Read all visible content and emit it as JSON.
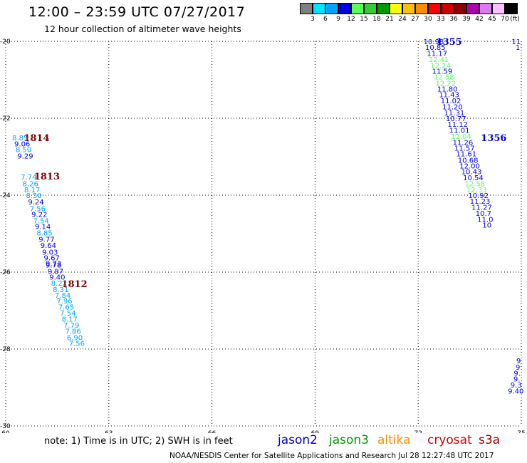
{
  "header": {
    "title": "12:00 – 23:59 UTC 07/27/2017",
    "subtitle": "12 hour collection of altimeter wave heights"
  },
  "color_scale": {
    "labels": [
      "3",
      "6",
      "9",
      "12",
      "15",
      "18",
      "21",
      "24",
      "27",
      "30",
      "33",
      "36",
      "39",
      "42",
      "45",
      "70",
      "(ft)"
    ],
    "colors": [
      "#808080",
      "#00e5ff",
      "#00a5ff",
      "#0000e6",
      "#59ff59",
      "#33cc33",
      "#009900",
      "#ffff00",
      "#ffc000",
      "#ff8c00",
      "#ff0000",
      "#cc0000",
      "#8b0000",
      "#b000b0",
      "#d87cf0",
      "#ffc0ff",
      "#000000"
    ]
  },
  "footer": {
    "note": "note:  1) Time is in UTC;  2) SWH is in feet",
    "missions": [
      {
        "name": "jason2",
        "color": "#0000cc"
      },
      {
        "name": "jason3",
        "color": "#009900"
      },
      {
        "name": "altika",
        "color": "#ff8c00"
      },
      {
        "name": "cryosat",
        "color": "#cc0000"
      },
      {
        "name": "s3a",
        "color": "#990000"
      }
    ],
    "credits": "NOAA/NESDIS Center for Satellite Applications and Research    Jul 28 12:27:48 UTC 2017"
  },
  "chart_data": {
    "type": "scatter",
    "title": "12:00 – 23:59 UTC 07/27/2017",
    "subtitle": "12 hour collection of altimeter wave heights",
    "xlabel": "",
    "ylabel": "",
    "xlim": [
      60,
      75
    ],
    "ylim": [
      -30,
      -20
    ],
    "x_ticks": [
      60,
      63,
      66,
      69,
      72,
      75
    ],
    "y_ticks": [
      -20,
      -22,
      -24,
      -26,
      -28,
      -30
    ],
    "grid": true,
    "track_labels": [
      {
        "text": "1814",
        "x": 60.9,
        "y": -22.5,
        "color": "#800000"
      },
      {
        "text": "1813",
        "x": 61.2,
        "y": -23.5,
        "color": "#800000"
      },
      {
        "text": "1812",
        "x": 62.0,
        "y": -26.3,
        "color": "#800000"
      },
      {
        "text": "1355",
        "x": 72.9,
        "y": -20.0,
        "color": "#0000cc"
      },
      {
        "text": "1356",
        "x": 74.2,
        "y": -22.5,
        "color": "#0000cc"
      }
    ],
    "series": [
      {
        "name": "1814",
        "points": [
          {
            "x": 60.42,
            "y": -22.5,
            "v": "8.85",
            "c": "#00a5ff"
          },
          {
            "x": 60.48,
            "y": -22.66,
            "v": "9.06",
            "c": "#0000e6"
          },
          {
            "x": 60.52,
            "y": -22.81,
            "v": "8.50",
            "c": "#00a5ff"
          },
          {
            "x": 60.57,
            "y": -22.97,
            "v": "9.29",
            "c": "#0000e6"
          }
        ]
      },
      {
        "name": "1813",
        "points": [
          {
            "x": 60.67,
            "y": -23.52,
            "v": "7.74",
            "c": "#00a5ff"
          },
          {
            "x": 60.72,
            "y": -23.69,
            "v": "8.26",
            "c": "#00a5ff"
          },
          {
            "x": 60.77,
            "y": -23.85,
            "v": "8.17",
            "c": "#00a5ff"
          },
          {
            "x": 60.82,
            "y": -24.0,
            "v": "8.50",
            "c": "#00a5ff"
          },
          {
            "x": 60.88,
            "y": -24.17,
            "v": "9.24",
            "c": "#0000e6"
          },
          {
            "x": 60.93,
            "y": -24.34,
            "v": "7.56",
            "c": "#00a5ff"
          },
          {
            "x": 60.98,
            "y": -24.49,
            "v": "9.22",
            "c": "#0000e6"
          },
          {
            "x": 61.03,
            "y": -24.66,
            "v": "7.54",
            "c": "#00a5ff"
          },
          {
            "x": 61.08,
            "y": -24.81,
            "v": "9.14",
            "c": "#0000e6"
          },
          {
            "x": 61.13,
            "y": -24.97,
            "v": "8.85",
            "c": "#00a5ff"
          },
          {
            "x": 61.19,
            "y": -25.14,
            "v": "9.77",
            "c": "#0000e6"
          },
          {
            "x": 61.24,
            "y": -25.3,
            "v": "9.64",
            "c": "#0000e6"
          },
          {
            "x": 61.29,
            "y": -25.47,
            "v": "9.03",
            "c": "#0000e6"
          },
          {
            "x": 61.34,
            "y": -25.62,
            "v": "9.67",
            "c": "#0000e6"
          },
          {
            "x": 61.39,
            "y": -25.77,
            "v": "9.73",
            "c": "#0000e6"
          }
        ]
      },
      {
        "name": "1812",
        "points": [
          {
            "x": 61.39,
            "y": -25.81,
            "v": "9.78",
            "c": "#0000e6"
          },
          {
            "x": 61.45,
            "y": -25.97,
            "v": "9.87",
            "c": "#0000e6"
          },
          {
            "x": 61.5,
            "y": -26.12,
            "v": "9.40",
            "c": "#0000e6"
          },
          {
            "x": 61.55,
            "y": -26.28,
            "v": "8.22",
            "c": "#00a5ff"
          },
          {
            "x": 61.6,
            "y": -26.44,
            "v": "8.31",
            "c": "#00a5ff"
          },
          {
            "x": 61.66,
            "y": -26.59,
            "v": "7.84",
            "c": "#00a5ff"
          },
          {
            "x": 61.71,
            "y": -26.74,
            "v": "7.96",
            "c": "#00a5ff"
          },
          {
            "x": 61.76,
            "y": -26.9,
            "v": "7.65",
            "c": "#00a5ff"
          },
          {
            "x": 61.81,
            "y": -27.06,
            "v": "7.54",
            "c": "#00a5ff"
          },
          {
            "x": 61.86,
            "y": -27.21,
            "v": "8.17",
            "c": "#00a5ff"
          },
          {
            "x": 61.91,
            "y": -27.37,
            "v": "7.79",
            "c": "#00a5ff"
          },
          {
            "x": 61.96,
            "y": -27.53,
            "v": "7.86",
            "c": "#00a5ff"
          },
          {
            "x": 62.01,
            "y": -27.69,
            "v": "6.90",
            "c": "#00a5ff"
          },
          {
            "x": 62.07,
            "y": -27.84,
            "v": "7.56",
            "c": "#00a5ff"
          }
        ]
      },
      {
        "name": "1355",
        "points": [
          {
            "x": 72.45,
            "y": -20.0,
            "v": "10.98",
            "c": "#0000e6"
          },
          {
            "x": 72.5,
            "y": -20.15,
            "v": "10.85",
            "c": "#0000e6"
          },
          {
            "x": 72.55,
            "y": -20.31,
            "v": "11.17",
            "c": "#0000e6"
          },
          {
            "x": 72.6,
            "y": -20.46,
            "v": "12.41",
            "c": "#59ff59"
          },
          {
            "x": 72.65,
            "y": -20.62,
            "v": "12.24",
            "c": "#59ff59"
          },
          {
            "x": 72.7,
            "y": -20.77,
            "v": "11.59",
            "c": "#0000e6"
          },
          {
            "x": 72.75,
            "y": -20.92,
            "v": "12.58",
            "c": "#59ff59"
          },
          {
            "x": 72.8,
            "y": -21.08,
            "v": "12.22",
            "c": "#59ff59"
          },
          {
            "x": 72.85,
            "y": -21.23,
            "v": "11.80",
            "c": "#0000e6"
          },
          {
            "x": 72.9,
            "y": -21.38,
            "v": "11.43",
            "c": "#0000e6"
          },
          {
            "x": 72.95,
            "y": -21.54,
            "v": "11.02",
            "c": "#0000e6"
          },
          {
            "x": 73.0,
            "y": -21.69,
            "v": "11.20",
            "c": "#0000e6"
          },
          {
            "x": 73.05,
            "y": -21.85,
            "v": "11.31",
            "c": "#0000e6"
          },
          {
            "x": 73.1,
            "y": -22.0,
            "v": "10.77",
            "c": "#0000e6"
          },
          {
            "x": 73.15,
            "y": -22.15,
            "v": "11.12",
            "c": "#0000e6"
          },
          {
            "x": 73.2,
            "y": -22.31,
            "v": "11.01",
            "c": "#0000e6"
          },
          {
            "x": 73.25,
            "y": -22.46,
            "v": "12.04",
            "c": "#59ff59"
          },
          {
            "x": 73.3,
            "y": -22.62,
            "v": "11.26",
            "c": "#0000e6"
          },
          {
            "x": 73.35,
            "y": -22.77,
            "v": "11.57",
            "c": "#0000e6"
          },
          {
            "x": 73.4,
            "y": -22.92,
            "v": "11.61",
            "c": "#0000e6"
          },
          {
            "x": 73.45,
            "y": -23.08,
            "v": "10.68",
            "c": "#0000e6"
          },
          {
            "x": 73.5,
            "y": -23.23,
            "v": "12.00",
            "c": "#0000e6"
          },
          {
            "x": 73.55,
            "y": -23.38,
            "v": "10.43",
            "c": "#0000e6"
          },
          {
            "x": 73.6,
            "y": -23.54,
            "v": "10.54",
            "c": "#0000e6"
          },
          {
            "x": 73.65,
            "y": -23.69,
            "v": "12.58",
            "c": "#59ff59"
          },
          {
            "x": 73.7,
            "y": -23.85,
            "v": "12.33",
            "c": "#59ff59"
          },
          {
            "x": 73.75,
            "y": -24.0,
            "v": "10.92",
            "c": "#0000e6"
          },
          {
            "x": 73.8,
            "y": -24.15,
            "v": "11.23",
            "c": "#0000e6"
          },
          {
            "x": 73.85,
            "y": -24.31,
            "v": "11.27",
            "c": "#0000e6"
          },
          {
            "x": 73.9,
            "y": -24.46,
            "v": "10.7",
            "c": "#0000e6"
          },
          {
            "x": 73.95,
            "y": -24.62,
            "v": "11.0",
            "c": "#0000e6"
          },
          {
            "x": 74.0,
            "y": -24.77,
            "v": "10",
            "c": "#0000e6"
          }
        ]
      },
      {
        "name": "1356",
        "points": [
          {
            "x": 74.85,
            "y": -20.0,
            "v": "11",
            "c": "#0000e6"
          },
          {
            "x": 74.9,
            "y": -20.15,
            "v": "1",
            "c": "#0000e6"
          },
          {
            "x": 74.92,
            "y": -28.3,
            "v": "9",
            "c": "#0000e6"
          },
          {
            "x": 74.9,
            "y": -28.46,
            "v": "9",
            "c": "#0000e6"
          },
          {
            "x": 74.88,
            "y": -28.62,
            "v": "9.",
            "c": "#0000e6"
          },
          {
            "x": 74.87,
            "y": -28.77,
            "v": "9.",
            "c": "#0000e6"
          },
          {
            "x": 74.85,
            "y": -28.93,
            "v": "9.3",
            "c": "#0000e6"
          },
          {
            "x": 74.84,
            "y": -29.08,
            "v": "9.40",
            "c": "#0000e6"
          }
        ]
      }
    ]
  }
}
